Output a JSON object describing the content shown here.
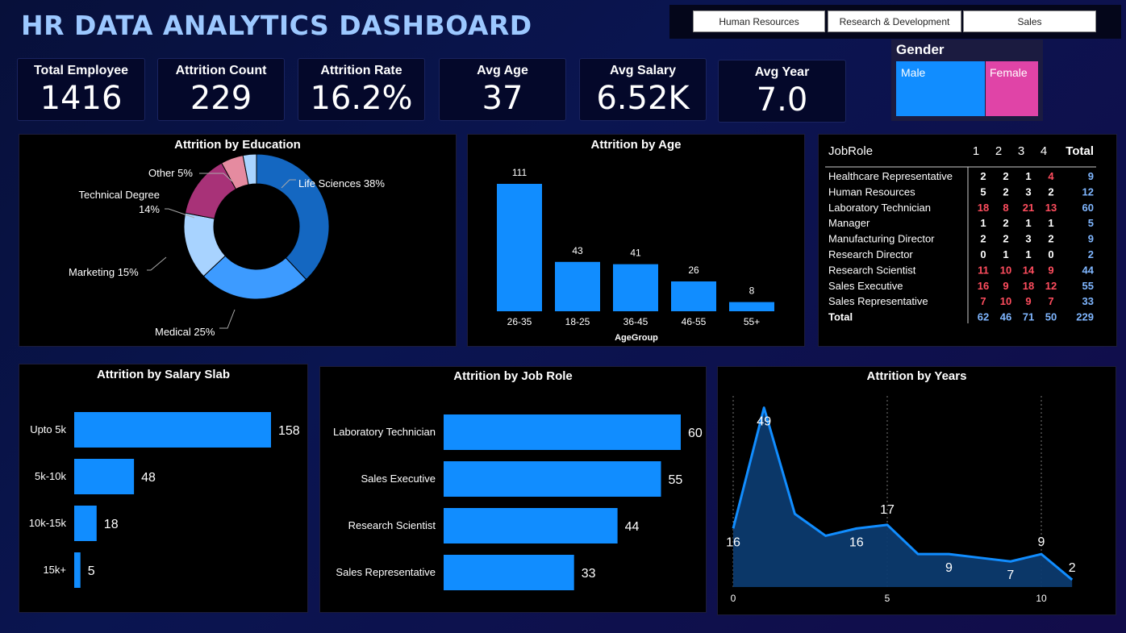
{
  "title": "HR DATA ANALYTICS DASHBOARD",
  "slicers": [
    "Human Resources",
    "Research & Development",
    "Sales"
  ],
  "kpis": [
    {
      "label": "Total Employee",
      "value": "1416"
    },
    {
      "label": "Attrition Count",
      "value": "229"
    },
    {
      "label": "Attrition Rate",
      "value": "16.2%"
    },
    {
      "label": "Avg Age",
      "value": "37"
    },
    {
      "label": "Avg Salary",
      "value": "6.52K"
    },
    {
      "label": "Avg Year",
      "value": "7.0"
    }
  ],
  "gender": {
    "title": "Gender",
    "male": "Male",
    "female": "Female"
  },
  "colors": {
    "bar": "#118dff",
    "male": "#118dff",
    "female": "#e044a7",
    "red": "#ff4d5e",
    "blue_num": "#7fb6ff"
  },
  "chart_data": [
    {
      "type": "pie",
      "title": "Attrition by Education",
      "categories": [
        "Life Sciences",
        "Medical",
        "Marketing",
        "Technical Degree",
        "Other"
      ],
      "values": [
        38,
        25,
        15,
        14,
        5
      ],
      "labels": [
        "Life Sciences 38%",
        "Medical 25%",
        "Marketing 15%",
        "Technical Degree",
        "14%",
        "Other 5%"
      ],
      "colors": [
        "#1467c1",
        "#3d9bff",
        "#a8d3ff",
        "#a83278",
        "#e58ba0",
        "#a9d4ff"
      ]
    },
    {
      "type": "bar",
      "title": "Attrition by Age",
      "categories": [
        "26-35",
        "18-25",
        "36-45",
        "46-55",
        "55+"
      ],
      "values": [
        111,
        43,
        41,
        26,
        8
      ],
      "xlabel": "AgeGroup",
      "ylim": [
        0,
        111
      ]
    },
    {
      "type": "bar",
      "orientation": "horizontal",
      "title": "Attrition by Salary Slab",
      "categories": [
        "Upto 5k",
        "5k-10k",
        "10k-15k",
        "15k+"
      ],
      "values": [
        158,
        48,
        18,
        5
      ]
    },
    {
      "type": "bar",
      "orientation": "horizontal",
      "title": "Attrition by Job Role",
      "categories": [
        "Laboratory Technician",
        "Sales Executive",
        "Research Scientist",
        "Sales Representative"
      ],
      "values": [
        60,
        55,
        44,
        33
      ]
    },
    {
      "type": "area",
      "title": "Attrition by Years",
      "x": [
        0,
        1,
        2,
        3,
        4,
        5,
        6,
        7,
        8,
        9,
        10,
        11
      ],
      "values": [
        16,
        49,
        20,
        14,
        16,
        17,
        9,
        9,
        8,
        7,
        9,
        2
      ],
      "point_labels": [
        {
          "index": 0,
          "text": "16"
        },
        {
          "index": 1,
          "text": "49"
        },
        {
          "index": 4,
          "text": "16"
        },
        {
          "index": 5,
          "text": "17"
        },
        {
          "index": 7,
          "text": "9"
        },
        {
          "index": 9,
          "text": "7"
        },
        {
          "index": 10,
          "text": "9"
        },
        {
          "index": 11,
          "text": "2"
        }
      ],
      "xticks": [
        0,
        5,
        10
      ],
      "ylim": [
        0,
        52
      ]
    }
  ],
  "matrix": {
    "headers": [
      "JobRole",
      "1",
      "2",
      "3",
      "4",
      "Total"
    ],
    "rows": [
      {
        "role": "Healthcare Representative",
        "v": [
          "2",
          "2",
          "1",
          "4"
        ],
        "c": [
          "w",
          "w",
          "w",
          "r"
        ],
        "total": "9"
      },
      {
        "role": "Human Resources",
        "v": [
          "5",
          "2",
          "3",
          "2"
        ],
        "c": [
          "w",
          "w",
          "w",
          "w"
        ],
        "total": "12"
      },
      {
        "role": "Laboratory Technician",
        "v": [
          "18",
          "8",
          "21",
          "13"
        ],
        "c": [
          "r",
          "r",
          "r",
          "r"
        ],
        "total": "60"
      },
      {
        "role": "Manager",
        "v": [
          "1",
          "2",
          "1",
          "1"
        ],
        "c": [
          "w",
          "w",
          "w",
          "w"
        ],
        "total": "5"
      },
      {
        "role": "Manufacturing Director",
        "v": [
          "2",
          "2",
          "3",
          "2"
        ],
        "c": [
          "w",
          "w",
          "w",
          "w"
        ],
        "total": "9"
      },
      {
        "role": "Research Director",
        "v": [
          "0",
          "1",
          "1",
          "0"
        ],
        "c": [
          "w",
          "w",
          "w",
          "w"
        ],
        "total": "2"
      },
      {
        "role": "Research Scientist",
        "v": [
          "11",
          "10",
          "14",
          "9"
        ],
        "c": [
          "r",
          "r",
          "r",
          "r"
        ],
        "total": "44"
      },
      {
        "role": "Sales Executive",
        "v": [
          "16",
          "9",
          "18",
          "12"
        ],
        "c": [
          "r",
          "r",
          "r",
          "r"
        ],
        "total": "55"
      },
      {
        "role": "Sales Representative",
        "v": [
          "7",
          "10",
          "9",
          "7"
        ],
        "c": [
          "r",
          "r",
          "r",
          "r"
        ],
        "total": "33"
      }
    ],
    "total_row": {
      "label": "Total",
      "v": [
        "62",
        "46",
        "71",
        "50"
      ],
      "total": "229"
    }
  }
}
